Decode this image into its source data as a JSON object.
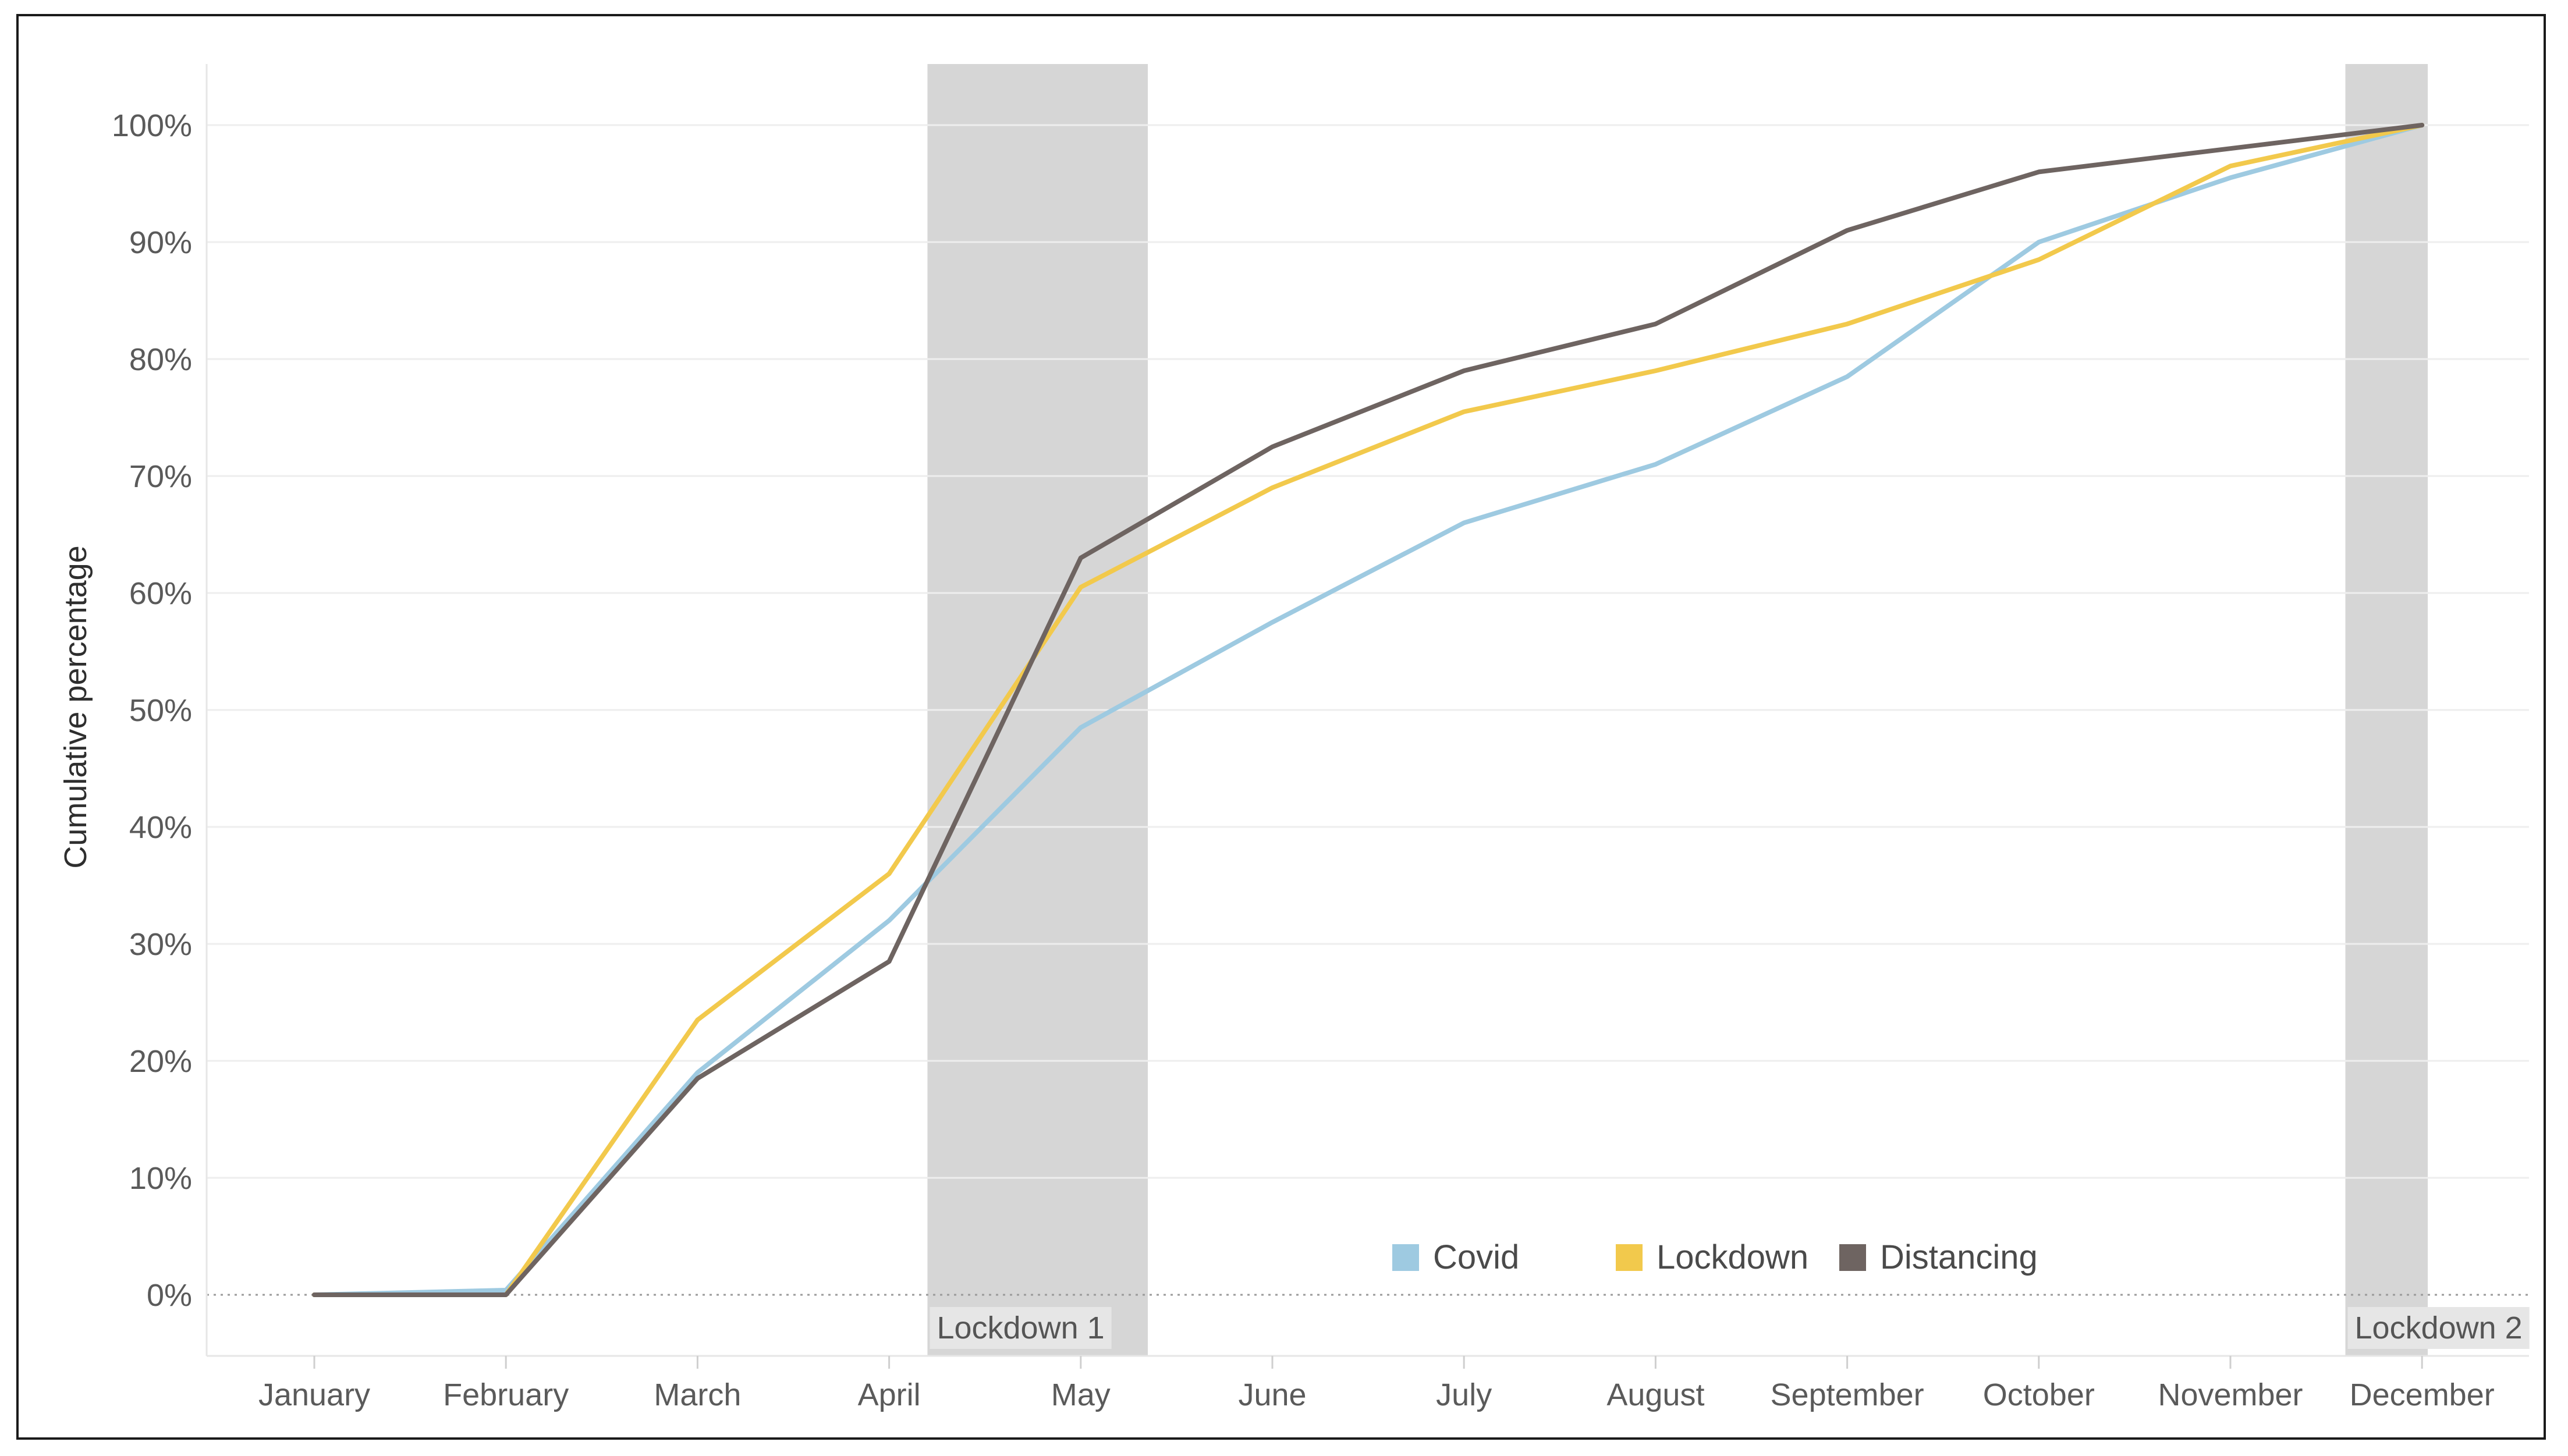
{
  "chart_data": {
    "type": "line",
    "title": "",
    "xlabel": "",
    "ylabel": "Cumulative percentage",
    "categories": [
      "January",
      "February",
      "March",
      "April",
      "May",
      "June",
      "July",
      "August",
      "September",
      "October",
      "November",
      "December"
    ],
    "ylim": [
      -5,
      105
    ],
    "yticks": [
      0,
      10,
      20,
      30,
      40,
      50,
      60,
      70,
      80,
      90,
      100
    ],
    "ytick_labels": [
      "0%",
      "10%",
      "20%",
      "30%",
      "40%",
      "50%",
      "60%",
      "70%",
      "80%",
      "90%",
      "100%"
    ],
    "grid": true,
    "legend_position": "bottom-center",
    "series": [
      {
        "name": "Covid",
        "color": "#9ecae1",
        "values": [
          0,
          0.4,
          19,
          32,
          48.5,
          57.5,
          66,
          71,
          78.5,
          90,
          95.5,
          100
        ]
      },
      {
        "name": "Lockdown",
        "color": "#f2c94c",
        "values": [
          0,
          0,
          23.5,
          36,
          60.5,
          69,
          75.5,
          79,
          83,
          88.5,
          96.5,
          100
        ]
      },
      {
        "name": "Distancing",
        "color": "#6e6461",
        "values": [
          0,
          0,
          18.5,
          28.5,
          63,
          72.5,
          79,
          83,
          91,
          96,
          98,
          100
        ]
      }
    ],
    "shaded_periods": [
      {
        "label": "Lockdown 1",
        "from": 3.2,
        "to": 4.35
      },
      {
        "label": "Lockdown 2",
        "from": 10.6,
        "to": 11.03
      }
    ]
  }
}
